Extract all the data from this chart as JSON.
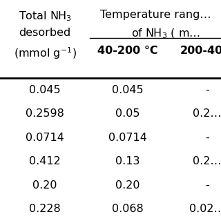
{
  "col1_header": [
    "Total NH$_3$",
    "desorbed",
    "(mmol g$^{-1}$)"
  ],
  "top_header": "Temperature rang…",
  "mid_header": "of NH$_3$ ( m…",
  "sub_col2_header": "40-200 °C",
  "sub_col3_header": "200-40…",
  "col1_values": [
    "0.045",
    "0.2598",
    "0.0714",
    "0.412",
    "0.20",
    "0.228"
  ],
  "col2_values": [
    "0.045",
    "0.05",
    "0.0714",
    "0.13",
    "0.20",
    "0.068"
  ],
  "col3_values": [
    "-",
    "0.2…",
    "-",
    "0.2…",
    "-",
    "0.02…"
  ],
  "bg_color": "#ffffff",
  "text_color": "#000000",
  "fontsize": 11.5,
  "header_fontsize": 11.5,
  "bold_fontsize": 11.5,
  "fig_width": 3.2,
  "fig_height": 3.2,
  "dpi": 100
}
